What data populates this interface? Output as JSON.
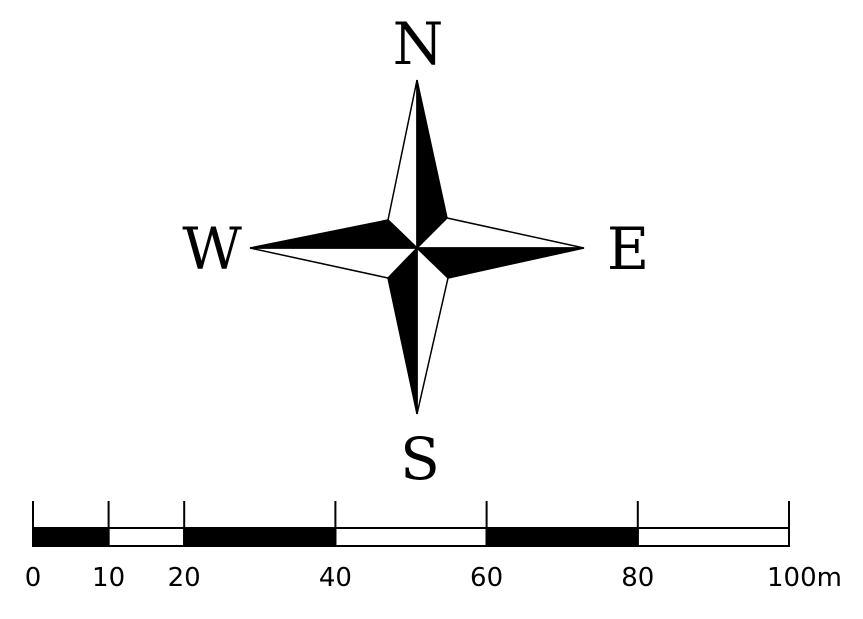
{
  "compass": {
    "north_label": "N",
    "east_label": "E",
    "south_label": "S",
    "west_label": "W",
    "colors": {
      "dark": "#000000",
      "light": "#ffffff"
    }
  },
  "scale_bar": {
    "ticks": [
      "0",
      "10",
      "20",
      "40",
      "60",
      "80",
      "100m"
    ],
    "segments": [
      {
        "from": 0,
        "to": 10,
        "fill": "#000000"
      },
      {
        "from": 10,
        "to": 20,
        "fill": "#ffffff"
      },
      {
        "from": 20,
        "to": 40,
        "fill": "#000000"
      },
      {
        "from": 40,
        "to": 60,
        "fill": "#ffffff"
      },
      {
        "from": 60,
        "to": 80,
        "fill": "#000000"
      },
      {
        "from": 80,
        "to": 100,
        "fill": "#ffffff"
      }
    ]
  }
}
